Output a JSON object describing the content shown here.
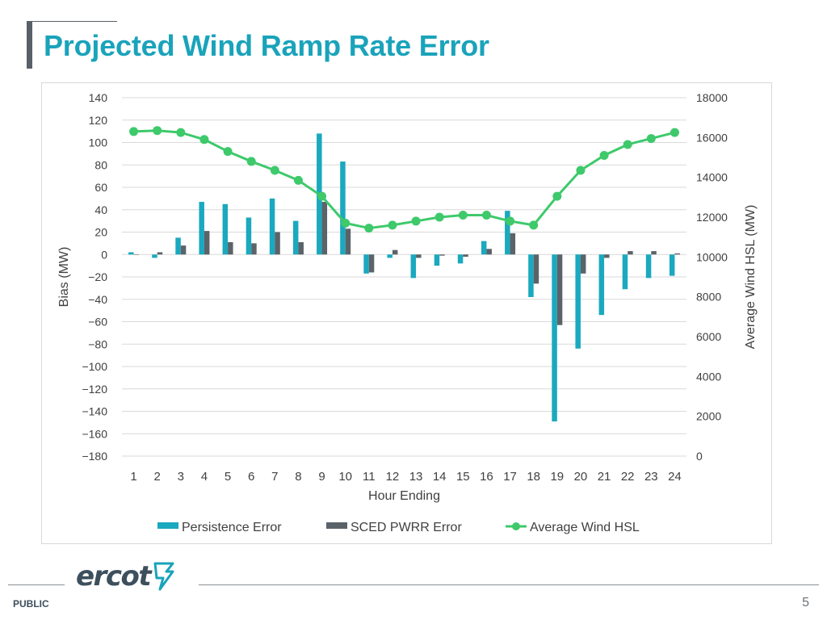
{
  "slide": {
    "title": "Projected Wind Ramp Rate Error",
    "footer_label": "PUBLIC",
    "page_number": "5",
    "logo_text": "ercot"
  },
  "colors": {
    "title": "#1aa3bb",
    "persistence": "#1aa9be",
    "sced": "#5b6369",
    "hsl": "#3ec96b",
    "logo": "#3d4f5c"
  },
  "chart_data": {
    "type": "bar",
    "title": "",
    "xlabel": "Hour Ending",
    "ylabel": "Bias (MW)",
    "y2label": "Average Wind HSL (MW)",
    "ylim": [
      -180,
      140
    ],
    "y2lim": [
      0,
      18000
    ],
    "yticks": [
      "140",
      "120",
      "100",
      "80",
      "60",
      "40",
      "20",
      "0",
      "-20",
      "-40",
      "-60",
      "-80",
      "-100",
      "-120",
      "-140",
      "-160",
      "-180"
    ],
    "y2ticks": [
      "18000",
      "16000",
      "14000",
      "12000",
      "10000",
      "8000",
      "6000",
      "4000",
      "2000",
      "0"
    ],
    "categories": [
      "1",
      "2",
      "3",
      "4",
      "5",
      "6",
      "7",
      "8",
      "9",
      "10",
      "11",
      "12",
      "13",
      "14",
      "15",
      "16",
      "17",
      "18",
      "19",
      "20",
      "21",
      "22",
      "23",
      "24"
    ],
    "legend_position": "bottom",
    "grid": true,
    "series": [
      {
        "name": "Persistence Error",
        "type": "bar",
        "axis": "left",
        "values": [
          2,
          -3,
          15,
          47,
          45,
          33,
          50,
          30,
          108,
          83,
          -17,
          -3,
          -21,
          -10,
          -8,
          12,
          39,
          -38,
          -149,
          -84,
          -54,
          -31,
          -21,
          -19
        ]
      },
      {
        "name": "SCED PWRR Error",
        "type": "bar",
        "axis": "left",
        "values": [
          0,
          2,
          8,
          21,
          11,
          10,
          20,
          11,
          47,
          23,
          -16,
          4,
          -3,
          -1,
          -2,
          5,
          19,
          -26,
          -63,
          -17,
          -3,
          3,
          3,
          1
        ]
      },
      {
        "name": "Average Wind HSL",
        "type": "line",
        "axis": "right",
        "values": [
          16300,
          16350,
          16250,
          15900,
          15300,
          14800,
          14350,
          13850,
          13050,
          11700,
          11450,
          11600,
          11800,
          12000,
          12100,
          12100,
          11800,
          11600,
          13050,
          14350,
          15100,
          15650,
          15950,
          16250
        ]
      }
    ]
  }
}
